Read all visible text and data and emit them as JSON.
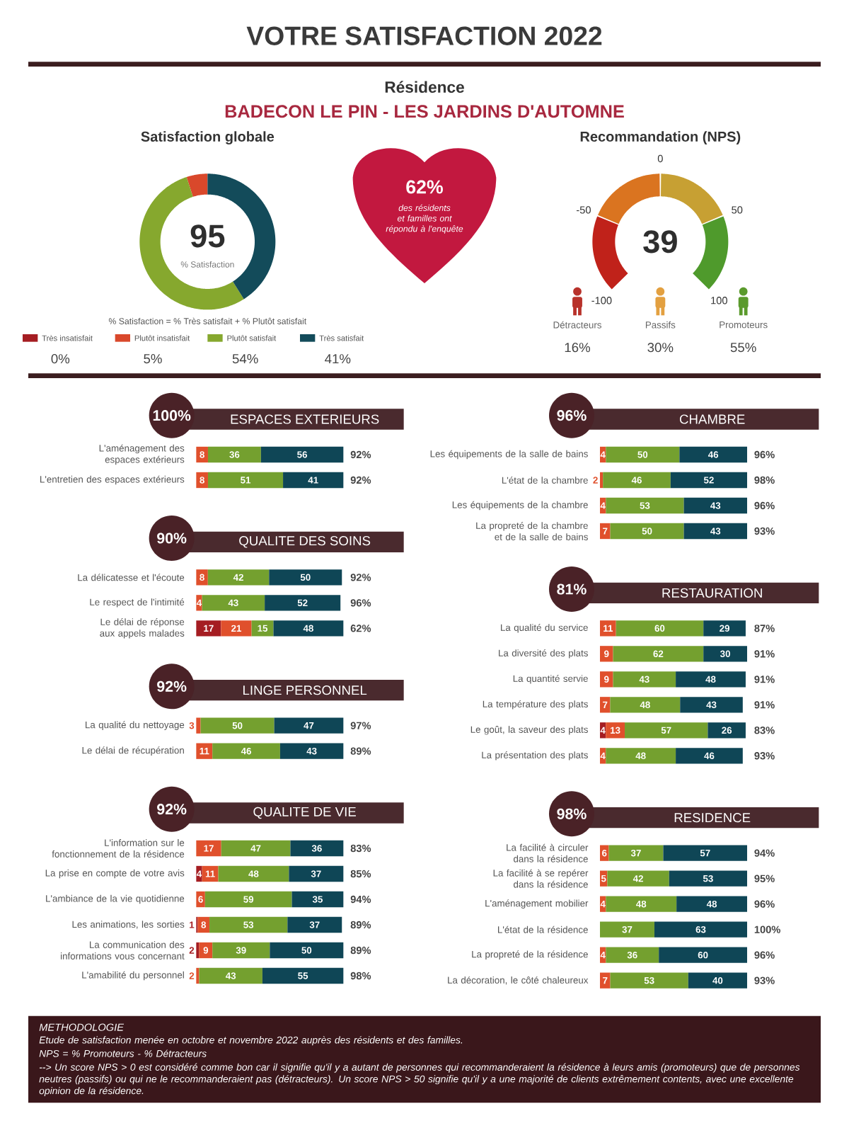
{
  "chart_data": [
    {
      "type": "other",
      "title": "VOTRE SATISFACTION 2022",
      "subtitle": "Résidence",
      "annotations": [
        "BADECON LE PIN - LES JARDINS D'AUTOMNE"
      ]
    },
    {
      "type": "donut",
      "title": "Satisfaction globale",
      "categories": [
        "Très insatisfait",
        "Plutôt insatisfait",
        "Plutôt satisfait",
        "Très satisfait"
      ],
      "values": [
        0,
        5,
        54,
        41
      ],
      "colors": [
        "#a51d22",
        "#d9482b",
        "#86a82e",
        "#134b5a"
      ],
      "value_labels": [
        "0%",
        "5%",
        "54%",
        "41%"
      ],
      "legend": "bottom",
      "annotations": [
        "95",
        "% Satisfaction",
        "% Satisfaction = % Très satisfait + % Plutôt satisfait"
      ]
    },
    {
      "type": "other",
      "title": "62%",
      "annotations": [
        "des résidents et familles ont répondu à l'enquête"
      ]
    },
    {
      "type": "other",
      "title": "Recommandation (NPS)",
      "annotations": [
        "39",
        "-100",
        "-50",
        "0",
        "50",
        "100"
      ],
      "colors": [
        "#c0221a",
        "#da7420",
        "#c7a033",
        "#4f9a2c"
      ]
    },
    {
      "type": "bar",
      "orientation": "horizontal",
      "stacked": true,
      "title": "ESPACES EXTERIEURS",
      "subtitle": "100%",
      "categories": [
        "L'aménagement des espaces extérieurs",
        "L'entretien des espaces extérieurs"
      ],
      "series": [
        {
          "color": "#e0502c",
          "values": [
            8,
            8
          ]
        },
        {
          "color": "#74a02f",
          "values": [
            36,
            51
          ]
        },
        {
          "color": "#0f4656",
          "values": [
            56,
            41
          ]
        }
      ],
      "tick_labels": "y",
      "data_labels": true,
      "annotations": [
        "92%",
        "92%"
      ]
    },
    {
      "type": "bar",
      "orientation": "horizontal",
      "stacked": true,
      "title": "CHAMBRE",
      "subtitle": "96%",
      "categories": [
        "Les équipements de la salle de bains",
        "L'état de la chambre",
        "Les équipements de la chambre",
        "La propreté de la chambre et de la salle de bains"
      ],
      "series": [
        {
          "color": "#e0502c",
          "values": [
            4,
            2,
            4,
            7
          ]
        },
        {
          "color": "#74a02f",
          "values": [
            50,
            46,
            53,
            50
          ]
        },
        {
          "color": "#0f4656",
          "values": [
            46,
            52,
            43,
            43
          ]
        }
      ],
      "tick_labels": "y",
      "data_labels": true,
      "annotations": [
        "96%",
        "98%",
        "96%",
        "93%"
      ]
    },
    {
      "type": "bar",
      "orientation": "horizontal",
      "stacked": true,
      "title": "QUALITE DES SOINS",
      "subtitle": "90%",
      "categories": [
        "La délicatesse et l'écoute",
        "Le respect de l'intimité",
        "Le délai de réponse aux appels malades"
      ],
      "series": [
        {
          "color": "#a51d22",
          "values": [
            null,
            null,
            17
          ]
        },
        {
          "color": "#e0502c",
          "values": [
            8,
            4,
            21
          ]
        },
        {
          "color": "#74a02f",
          "values": [
            42,
            43,
            15
          ]
        },
        {
          "color": "#0f4656",
          "values": [
            50,
            52,
            48
          ]
        }
      ],
      "tick_labels": "y",
      "data_labels": true,
      "annotations": [
        "92%",
        "96%",
        "62%"
      ]
    },
    {
      "type": "bar",
      "orientation": "horizontal",
      "stacked": true,
      "title": "RESTAURATION",
      "subtitle": "81%",
      "categories": [
        "La qualité du service",
        "La diversité des plats",
        "La quantité servie",
        "La température des plats",
        "Le goût, la saveur des plats",
        "La présentation des plats"
      ],
      "series": [
        {
          "color": "#a51d22",
          "values": [
            null,
            null,
            null,
            null,
            4,
            null
          ]
        },
        {
          "color": "#e0502c",
          "values": [
            11,
            9,
            9,
            7,
            13,
            4
          ]
        },
        {
          "color": "#74a02f",
          "values": [
            60,
            62,
            43,
            48,
            57,
            48
          ]
        },
        {
          "color": "#0f4656",
          "values": [
            29,
            30,
            48,
            43,
            26,
            46
          ]
        }
      ],
      "tick_labels": "y",
      "data_labels": true,
      "annotations": [
        "87%",
        "91%",
        "91%",
        "91%",
        "83%",
        "93%"
      ]
    },
    {
      "type": "bar",
      "orientation": "horizontal",
      "stacked": true,
      "title": "LINGE PERSONNEL",
      "subtitle": "92%",
      "categories": [
        "La qualité du nettoyage",
        "Le délai de récupération"
      ],
      "series": [
        {
          "color": "#e0502c",
          "values": [
            3,
            11
          ]
        },
        {
          "color": "#74a02f",
          "values": [
            50,
            46
          ]
        },
        {
          "color": "#0f4656",
          "values": [
            47,
            43
          ]
        }
      ],
      "tick_labels": "y",
      "data_labels": true,
      "annotations": [
        "97%",
        "89%"
      ]
    },
    {
      "type": "bar",
      "orientation": "horizontal",
      "stacked": true,
      "title": "QUALITE DE VIE",
      "subtitle": "92%",
      "categories": [
        "L'information sur le fonctionnement de la résidence",
        "La prise en compte de votre avis",
        "L'ambiance de la vie quotidienne",
        "Les animations, les sorties",
        "La communication des informations vous concernant",
        "L'amabilité du personnel"
      ],
      "series": [
        {
          "color": "#a51d22",
          "values": [
            null,
            4,
            null,
            1,
            2,
            null
          ]
        },
        {
          "color": "#e0502c",
          "values": [
            17,
            11,
            6,
            8,
            9,
            2
          ]
        },
        {
          "color": "#74a02f",
          "values": [
            47,
            48,
            59,
            53,
            39,
            43
          ]
        },
        {
          "color": "#0f4656",
          "values": [
            36,
            37,
            35,
            37,
            50,
            55
          ]
        }
      ],
      "tick_labels": "y",
      "data_labels": true,
      "annotations": [
        "83%",
        "85%",
        "94%",
        "89%",
        "89%",
        "98%"
      ]
    },
    {
      "type": "bar",
      "orientation": "horizontal",
      "stacked": true,
      "title": "RESIDENCE",
      "subtitle": "98%",
      "categories": [
        "La facilité à circuler dans la résidence",
        "La facilité à se repérer dans la résidence",
        "L'aménagement mobilier",
        "L'état de la résidence",
        "La propreté de la résidence",
        "La décoration, le côté chaleureux"
      ],
      "series": [
        {
          "color": "#e0502c",
          "values": [
            6,
            5,
            4,
            null,
            4,
            7
          ]
        },
        {
          "color": "#74a02f",
          "values": [
            37,
            42,
            48,
            37,
            36,
            53
          ]
        },
        {
          "color": "#0f4656",
          "values": [
            57,
            53,
            48,
            63,
            60,
            40
          ]
        }
      ],
      "tick_labels": "y",
      "data_labels": true,
      "annotations": [
        "94%",
        "95%",
        "96%",
        "100%",
        "96%",
        "93%"
      ]
    },
    {
      "type": "other",
      "title": "METHODOLOGIE",
      "annotations": [
        "Etude de satisfaction menée en octobre et novembre 2022 auprès des résidents et des familles.",
        "NPS = % Promoteurs - % Détracteurs",
        "--> Un score NPS > 0 est considéré comme bon car il signifie qu'il y a autant de personnes qui recommanderaient la résidence à leurs amis (promoteurs) que de personnes neutres (passifs) ou qui ne le recommanderaient pas (détracteurs). Un score NPS > 50 signifie qu'il y a une majorité de clients extrêmement contents, avec une excellente opinion de la résidence."
      ]
    },
    {
      "type": "other",
      "categories": [
        "Détracteurs",
        "Passifs",
        "Promoteurs"
      ],
      "values": [
        16,
        30,
        55
      ],
      "value_labels": [
        "16%",
        "30%",
        "55%"
      ]
    }
  ]
}
